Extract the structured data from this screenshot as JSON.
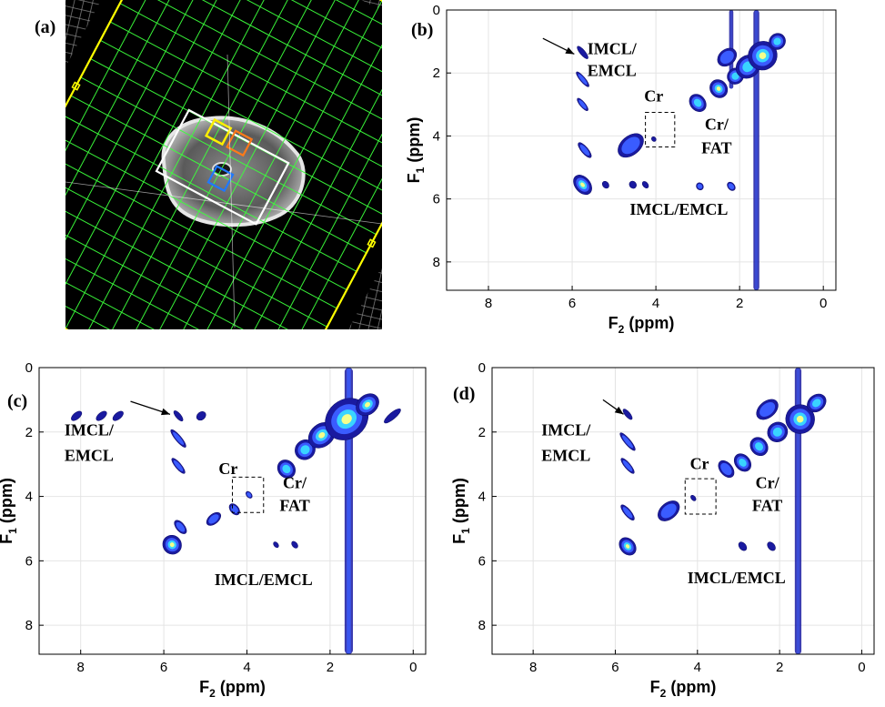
{
  "panels": {
    "a": {
      "label": "(a)"
    },
    "b": {
      "label": "(b)"
    },
    "c": {
      "label": "(c)"
    },
    "d": {
      "label": "(d)"
    }
  },
  "colors": {
    "grid_voxel": "#3cff3c",
    "fov_outline": "#ffff00",
    "voxel_yellow": "#ffee00",
    "voxel_orange": "#ff7a1a",
    "voxel_blue": "#1f78ff",
    "contour_low": "#1a1aa0",
    "contour_mid": "#3a5cff",
    "contour_high": "#39d4ff",
    "contour_peak": "#f4ff8a"
  },
  "chart_data": [
    {
      "panel": "b",
      "type": "heatmap",
      "xlabel": "F",
      "xlabel_sub": "2",
      "xlabel_unit": " (ppm)",
      "ylabel": "F",
      "ylabel_sub": "1",
      "ylabel_unit": " (ppm)",
      "xlim": [
        9,
        -0.3
      ],
      "ylim": [
        0,
        8.9
      ],
      "xticks": [
        "8",
        "6",
        "4",
        "2",
        "0"
      ],
      "yticks": [
        "0",
        "2",
        "4",
        "6",
        "8"
      ],
      "grid": true,
      "annotations": [
        {
          "text": "IMCL/",
          "x": 5.05,
          "y": 1.4
        },
        {
          "text": "EMCL",
          "x": 5.05,
          "y": 2.1
        },
        {
          "text": "Cr",
          "x": 4.05,
          "y": 2.9
        },
        {
          "text": "Cr/",
          "x": 2.55,
          "y": 3.8
        },
        {
          "text": "FAT",
          "x": 2.55,
          "y": 4.55
        },
        {
          "text": "IMCL/EMCL",
          "x": 3.45,
          "y": 6.5
        }
      ],
      "arrow": {
        "from": [
          6.7,
          0.9
        ],
        "to": [
          5.95,
          1.4
        ]
      },
      "box": {
        "x": [
          4.25,
          3.55
        ],
        "y": [
          3.25,
          4.35
        ]
      },
      "peaks": [
        {
          "x": 5.75,
          "y": 5.55,
          "intensity": 0.95,
          "sx": 0.18,
          "sy": 0.35
        },
        {
          "x": 5.75,
          "y": 1.35,
          "intensity": 0.3,
          "sx": 0.06,
          "sy": 0.25
        },
        {
          "x": 5.75,
          "y": 2.2,
          "intensity": 0.45,
          "sx": 0.06,
          "sy": 0.3
        },
        {
          "x": 5.75,
          "y": 3.0,
          "intensity": 0.4,
          "sx": 0.06,
          "sy": 0.25
        },
        {
          "x": 5.7,
          "y": 4.45,
          "intensity": 0.55,
          "sx": 0.08,
          "sy": 0.3
        },
        {
          "x": 4.6,
          "y": 4.3,
          "intensity": 0.6,
          "sx": 0.35,
          "sy": 0.3
        },
        {
          "x": 4.05,
          "y": 4.1,
          "intensity": 0.3,
          "sx": 0.05,
          "sy": 0.08
        },
        {
          "x": 5.2,
          "y": 5.55,
          "intensity": 0.35,
          "sx": 0.07,
          "sy": 0.12
        },
        {
          "x": 4.55,
          "y": 5.55,
          "intensity": 0.3,
          "sx": 0.08,
          "sy": 0.12
        },
        {
          "x": 4.25,
          "y": 5.55,
          "intensity": 0.3,
          "sx": 0.06,
          "sy": 0.12
        },
        {
          "x": 2.95,
          "y": 5.6,
          "intensity": 0.4,
          "sx": 0.08,
          "sy": 0.12
        },
        {
          "x": 2.2,
          "y": 5.6,
          "intensity": 0.45,
          "sx": 0.08,
          "sy": 0.15
        },
        {
          "x": 3.0,
          "y": 2.95,
          "intensity": 0.8,
          "sx": 0.18,
          "sy": 0.3
        },
        {
          "x": 2.5,
          "y": 2.5,
          "intensity": 0.9,
          "sx": 0.2,
          "sy": 0.3
        },
        {
          "x": 2.1,
          "y": 2.1,
          "intensity": 0.7,
          "sx": 0.2,
          "sy": 0.25
        },
        {
          "x": 1.8,
          "y": 1.8,
          "intensity": 0.85,
          "sx": 0.3,
          "sy": 0.35
        },
        {
          "x": 1.45,
          "y": 1.45,
          "intensity": 1.0,
          "sx": 0.35,
          "sy": 0.45
        },
        {
          "x": 1.1,
          "y": 1.0,
          "intensity": 0.7,
          "sx": 0.2,
          "sy": 0.25
        },
        {
          "x": 2.3,
          "y": 1.5,
          "intensity": 0.45,
          "sx": 0.25,
          "sy": 0.25
        }
      ],
      "ridges": [
        {
          "x": 1.6,
          "y_from": 0.0,
          "y_to": 8.9,
          "intensity": 0.3,
          "sx": 0.07
        },
        {
          "x": 2.2,
          "y_from": 0.0,
          "y_to": 2.5,
          "intensity": 0.2,
          "sx": 0.05
        }
      ]
    },
    {
      "panel": "c",
      "type": "heatmap",
      "xlabel": "F",
      "xlabel_sub": "2",
      "xlabel_unit": " (ppm)",
      "ylabel": "F",
      "ylabel_sub": "1",
      "ylabel_unit": " (ppm)",
      "xlim": [
        9,
        -0.3
      ],
      "ylim": [
        0,
        8.9
      ],
      "xticks": [
        "8",
        "6",
        "4",
        "2",
        "0"
      ],
      "yticks": [
        "0",
        "2",
        "4",
        "6",
        "8"
      ],
      "grid": true,
      "annotations": [
        {
          "text": "IMCL/",
          "x": 7.8,
          "y": 2.1
        },
        {
          "text": "EMCL",
          "x": 7.8,
          "y": 2.9
        },
        {
          "text": "Cr",
          "x": 4.45,
          "y": 3.3
        },
        {
          "text": "Cr/",
          "x": 2.85,
          "y": 3.75
        },
        {
          "text": "FAT",
          "x": 2.85,
          "y": 4.45
        },
        {
          "text": "IMCL/EMCL",
          "x": 3.6,
          "y": 6.75
        }
      ],
      "arrow": {
        "from": [
          6.8,
          1.05
        ],
        "to": [
          5.85,
          1.45
        ]
      },
      "box": {
        "x": [
          4.35,
          3.6
        ],
        "y": [
          3.4,
          4.5
        ]
      },
      "peaks": [
        {
          "x": 5.8,
          "y": 5.5,
          "intensity": 1.0,
          "sx": 0.22,
          "sy": 0.3
        },
        {
          "x": 5.65,
          "y": 1.5,
          "intensity": 0.3,
          "sx": 0.06,
          "sy": 0.2
        },
        {
          "x": 5.65,
          "y": 2.2,
          "intensity": 0.45,
          "sx": 0.07,
          "sy": 0.35
        },
        {
          "x": 5.65,
          "y": 3.05,
          "intensity": 0.4,
          "sx": 0.07,
          "sy": 0.3
        },
        {
          "x": 5.6,
          "y": 4.95,
          "intensity": 0.45,
          "sx": 0.1,
          "sy": 0.25
        },
        {
          "x": 4.8,
          "y": 4.7,
          "intensity": 0.45,
          "sx": 0.2,
          "sy": 0.15
        },
        {
          "x": 4.3,
          "y": 4.4,
          "intensity": 0.5,
          "sx": 0.1,
          "sy": 0.2
        },
        {
          "x": 3.95,
          "y": 3.95,
          "intensity": 0.45,
          "sx": 0.06,
          "sy": 0.12
        },
        {
          "x": 8.1,
          "y": 1.5,
          "intensity": 0.35,
          "sx": 0.15,
          "sy": 0.1
        },
        {
          "x": 7.5,
          "y": 1.5,
          "intensity": 0.35,
          "sx": 0.15,
          "sy": 0.1
        },
        {
          "x": 7.1,
          "y": 1.5,
          "intensity": 0.35,
          "sx": 0.15,
          "sy": 0.1
        },
        {
          "x": 5.1,
          "y": 1.5,
          "intensity": 0.35,
          "sx": 0.12,
          "sy": 0.12
        },
        {
          "x": 3.05,
          "y": 3.15,
          "intensity": 0.7,
          "sx": 0.2,
          "sy": 0.3
        },
        {
          "x": 2.6,
          "y": 2.55,
          "intensity": 0.8,
          "sx": 0.25,
          "sy": 0.3
        },
        {
          "x": 2.2,
          "y": 2.1,
          "intensity": 0.9,
          "sx": 0.35,
          "sy": 0.35
        },
        {
          "x": 1.6,
          "y": 1.6,
          "intensity": 1.0,
          "sx": 0.55,
          "sy": 0.6
        },
        {
          "x": 1.1,
          "y": 1.15,
          "intensity": 0.9,
          "sx": 0.3,
          "sy": 0.3
        },
        {
          "x": 0.5,
          "y": 1.5,
          "intensity": 0.35,
          "sx": 0.25,
          "sy": 0.1
        },
        {
          "x": 2.85,
          "y": 5.5,
          "intensity": 0.25,
          "sx": 0.06,
          "sy": 0.12
        },
        {
          "x": 3.3,
          "y": 5.5,
          "intensity": 0.25,
          "sx": 0.05,
          "sy": 0.1
        }
      ],
      "ridges": [
        {
          "x": 1.55,
          "y_from": 0.0,
          "y_to": 8.9,
          "intensity": 0.55,
          "sx": 0.1
        }
      ]
    },
    {
      "panel": "d",
      "type": "heatmap",
      "xlabel": "F",
      "xlabel_sub": "2",
      "xlabel_unit": " (ppm)",
      "ylabel": "F",
      "ylabel_sub": "1",
      "ylabel_unit": " (ppm)",
      "xlim": [
        9,
        -0.3
      ],
      "ylim": [
        0,
        8.9
      ],
      "xticks": [
        "8",
        "6",
        "4",
        "2",
        "0"
      ],
      "yticks": [
        "0",
        "2",
        "4",
        "6",
        "8"
      ],
      "grid": true,
      "annotations": [
        {
          "text": "IMCL/",
          "x": 7.2,
          "y": 2.1
        },
        {
          "text": "EMCL",
          "x": 7.2,
          "y": 2.9
        },
        {
          "text": "Cr",
          "x": 3.95,
          "y": 3.15
        },
        {
          "text": "Cr/",
          "x": 2.3,
          "y": 3.75
        },
        {
          "text": "FAT",
          "x": 2.3,
          "y": 4.45
        },
        {
          "text": "IMCL/EMCL",
          "x": 3.05,
          "y": 6.7
        }
      ],
      "arrow": {
        "from": [
          6.3,
          1.0
        ],
        "to": [
          5.8,
          1.45
        ]
      },
      "box": {
        "x": [
          4.3,
          3.55
        ],
        "y": [
          3.45,
          4.55
        ]
      },
      "peaks": [
        {
          "x": 5.7,
          "y": 5.55,
          "intensity": 0.95,
          "sx": 0.18,
          "sy": 0.3
        },
        {
          "x": 5.7,
          "y": 1.45,
          "intensity": 0.35,
          "sx": 0.06,
          "sy": 0.2
        },
        {
          "x": 5.7,
          "y": 2.3,
          "intensity": 0.5,
          "sx": 0.07,
          "sy": 0.35
        },
        {
          "x": 5.7,
          "y": 3.05,
          "intensity": 0.45,
          "sx": 0.07,
          "sy": 0.3
        },
        {
          "x": 5.7,
          "y": 4.5,
          "intensity": 0.5,
          "sx": 0.08,
          "sy": 0.3
        },
        {
          "x": 4.7,
          "y": 4.45,
          "intensity": 0.55,
          "sx": 0.3,
          "sy": 0.25
        },
        {
          "x": 4.1,
          "y": 4.05,
          "intensity": 0.35,
          "sx": 0.05,
          "sy": 0.1
        },
        {
          "x": 2.9,
          "y": 5.55,
          "intensity": 0.35,
          "sx": 0.08,
          "sy": 0.15
        },
        {
          "x": 2.2,
          "y": 5.55,
          "intensity": 0.35,
          "sx": 0.08,
          "sy": 0.15
        },
        {
          "x": 3.3,
          "y": 3.15,
          "intensity": 0.6,
          "sx": 0.15,
          "sy": 0.3
        },
        {
          "x": 2.9,
          "y": 2.95,
          "intensity": 0.75,
          "sx": 0.18,
          "sy": 0.3
        },
        {
          "x": 2.5,
          "y": 2.45,
          "intensity": 0.8,
          "sx": 0.2,
          "sy": 0.3
        },
        {
          "x": 2.05,
          "y": 2.0,
          "intensity": 0.75,
          "sx": 0.25,
          "sy": 0.3
        },
        {
          "x": 1.5,
          "y": 1.6,
          "intensity": 1.0,
          "sx": 0.35,
          "sy": 0.45
        },
        {
          "x": 1.1,
          "y": 1.1,
          "intensity": 0.7,
          "sx": 0.25,
          "sy": 0.25
        },
        {
          "x": 2.3,
          "y": 1.3,
          "intensity": 0.45,
          "sx": 0.3,
          "sy": 0.25
        }
      ],
      "ridges": [
        {
          "x": 1.55,
          "y_from": 0.0,
          "y_to": 8.9,
          "intensity": 0.35,
          "sx": 0.08
        }
      ]
    }
  ]
}
